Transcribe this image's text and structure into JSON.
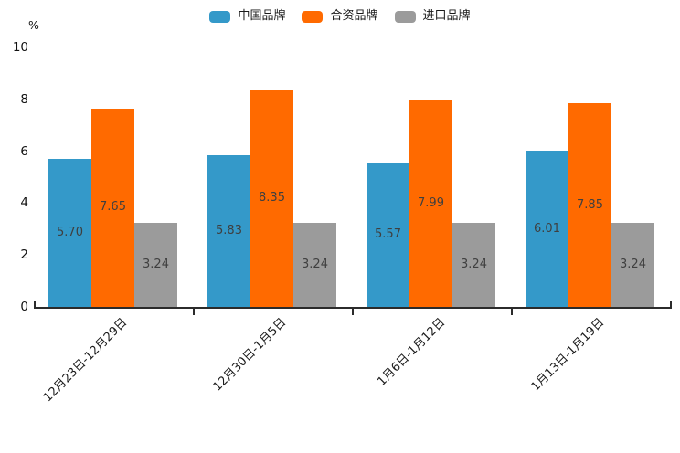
{
  "chart_data": {
    "type": "bar",
    "title": "",
    "unit_label": "%",
    "categories": [
      "12月23日-12月29日",
      "12月30日-1月5日",
      "1月6日-1月12日",
      "1月13日-1月19日"
    ],
    "series": [
      {
        "name": "中国品牌",
        "color": "#3499C9",
        "values": [
          5.7,
          5.83,
          5.57,
          6.01
        ]
      },
      {
        "name": "合资品牌",
        "color": "#FF6A00",
        "values": [
          7.65,
          8.35,
          7.99,
          7.85
        ]
      },
      {
        "name": "进口品牌",
        "color": "#9B9B9B",
        "values": [
          3.24,
          3.24,
          3.24,
          3.24
        ]
      }
    ],
    "ylim": [
      0,
      10
    ],
    "yticks": [
      0,
      2,
      4,
      6,
      8,
      10
    ],
    "legend_position": "top",
    "grid": false,
    "value_label_decimals": 2,
    "value_label_color": "#3f3f3f",
    "axis_color": "#2b2b2b"
  }
}
